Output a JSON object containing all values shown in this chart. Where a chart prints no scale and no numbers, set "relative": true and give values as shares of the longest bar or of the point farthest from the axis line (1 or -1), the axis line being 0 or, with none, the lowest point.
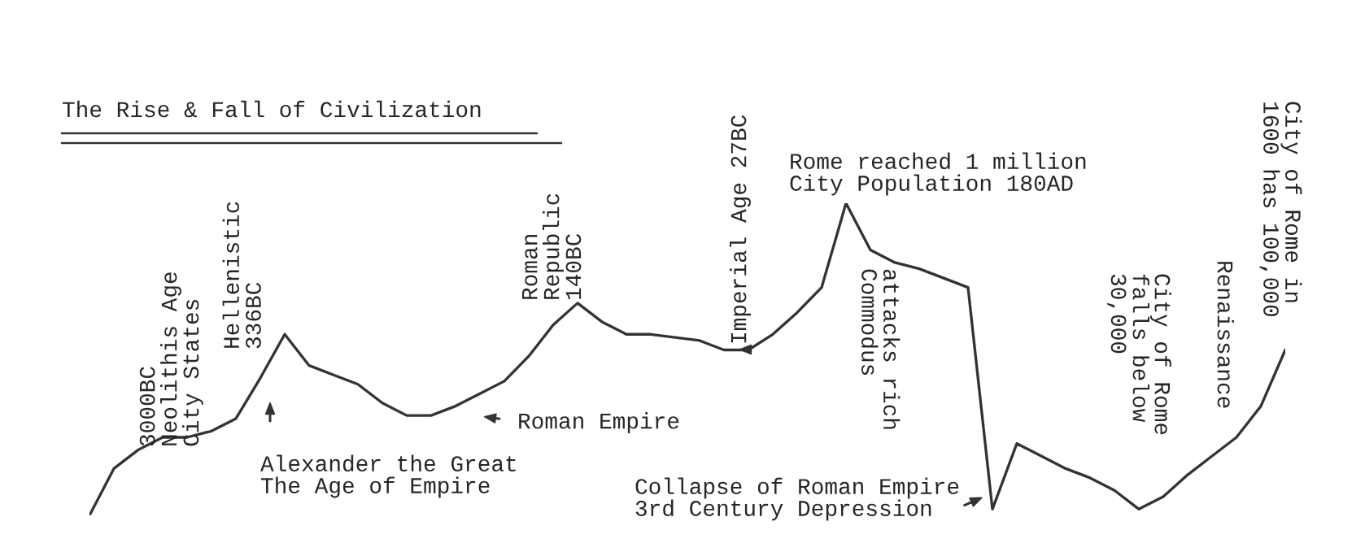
{
  "chart_data": {
    "type": "line",
    "title": "The Rise & Fall of Civilization",
    "relative": true,
    "categories": [
      null,
      null,
      null,
      null,
      null,
      null,
      null,
      null,
      null,
      null,
      null,
      null,
      null,
      null,
      null,
      null,
      null,
      null,
      null,
      null,
      null,
      null,
      null,
      null,
      null,
      null,
      null,
      null,
      null,
      null,
      null,
      null,
      null,
      null,
      null,
      null,
      null,
      null,
      null,
      null,
      null,
      null,
      null,
      null,
      null,
      null,
      null,
      null,
      null,
      null
    ],
    "series": [
      {
        "color": "#333333",
        "values": [
          0,
          0.15,
          0.21,
          0.25,
          0.25,
          0.27,
          0.31,
          0.44,
          0.58,
          0.48,
          0.45,
          0.42,
          0.36,
          0.32,
          0.32,
          0.35,
          0.39,
          0.43,
          0.51,
          0.61,
          0.68,
          0.62,
          0.58,
          0.58,
          0.57,
          0.56,
          0.53,
          0.53,
          0.58,
          0.65,
          0.73,
          1.0,
          0.85,
          0.81,
          0.79,
          0.76,
          0.73,
          0.02,
          0.23,
          0.19,
          0.15,
          0.12,
          0.08,
          0.02,
          0.06,
          0.13,
          0.19,
          0.25,
          0.35,
          0.53
        ]
      }
    ],
    "annotations": [
      "3000BC\nNeolithis Age\nCity States",
      "Hellenistic\n336BC",
      "Alexander the Great\nThe Age of Empire",
      "Roman Empire",
      "Roman\nRepublic\n140BC",
      "Imperial Age 27BC",
      "Rome reached 1 million\nCity Population 180AD",
      "attacks rich\nCommodus",
      "Collapse of Roman Empire\n3rd Century Depression",
      "City of Rome\nfalls below\n30,000",
      "Renaissance",
      "City of Rome in\n1600 has 100,000"
    ]
  }
}
